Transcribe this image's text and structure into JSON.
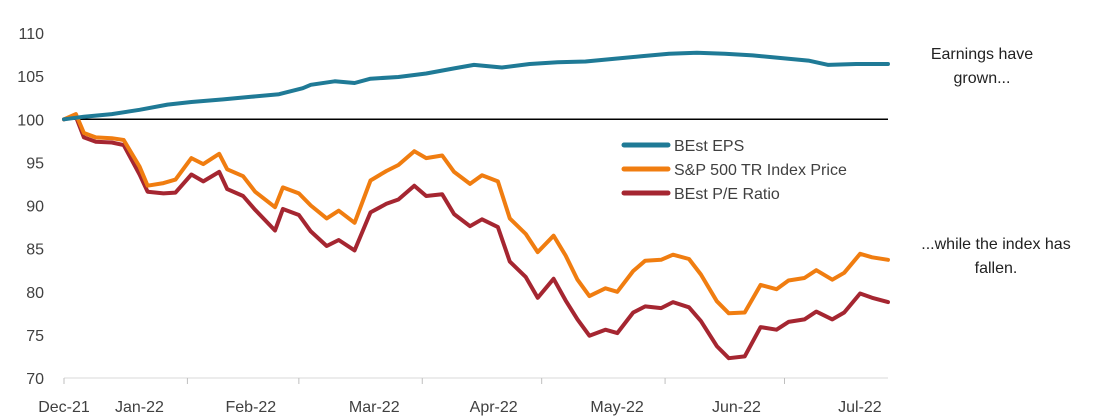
{
  "chart_data": {
    "type": "line",
    "title": "",
    "xlabel": "",
    "ylabel": "",
    "ylim": [
      70,
      110
    ],
    "yticks": [
      "70",
      "75",
      "80",
      "85",
      "90",
      "95",
      "100",
      "105",
      "110"
    ],
    "x_tick_labels": [
      "Dec-21",
      "Jan-22",
      "Feb-22",
      "Mar-22",
      "Apr-22",
      "May-22",
      "Jun-22",
      "Jul-22"
    ],
    "x_tick_dates": [
      "2021-12-31",
      "2022-01-31",
      "2022-02-28",
      "2022-03-31",
      "2022-04-30",
      "2022-05-31",
      "2022-06-30",
      "2022-07-31"
    ],
    "x_range": [
      "2021-12-31",
      "2022-07-26"
    ],
    "reference_line": 100,
    "legend_position": "center-right",
    "annotations": [
      "Earnings have grown...",
      "...while the index has fallen."
    ],
    "series": [
      {
        "name": "BEst EPS",
        "color": "#1f7a96",
        "points": [
          [
            "2021-12-31",
            100.0
          ],
          [
            "2022-01-05",
            100.3
          ],
          [
            "2022-01-12",
            100.6
          ],
          [
            "2022-01-19",
            101.1
          ],
          [
            "2022-01-26",
            101.7
          ],
          [
            "2022-02-01",
            102.0
          ],
          [
            "2022-02-09",
            102.3
          ],
          [
            "2022-02-16",
            102.6
          ],
          [
            "2022-02-23",
            102.9
          ],
          [
            "2022-03-01",
            103.6
          ],
          [
            "2022-03-03",
            104.0
          ],
          [
            "2022-03-09",
            104.4
          ],
          [
            "2022-03-14",
            104.2
          ],
          [
            "2022-03-18",
            104.7
          ],
          [
            "2022-03-25",
            104.9
          ],
          [
            "2022-04-01",
            105.3
          ],
          [
            "2022-04-08",
            105.9
          ],
          [
            "2022-04-13",
            106.3
          ],
          [
            "2022-04-20",
            106.0
          ],
          [
            "2022-04-27",
            106.4
          ],
          [
            "2022-05-04",
            106.6
          ],
          [
            "2022-05-11",
            106.7
          ],
          [
            "2022-05-18",
            107.0
          ],
          [
            "2022-05-25",
            107.3
          ],
          [
            "2022-06-01",
            107.6
          ],
          [
            "2022-06-08",
            107.7
          ],
          [
            "2022-06-15",
            107.6
          ],
          [
            "2022-06-22",
            107.4
          ],
          [
            "2022-06-29",
            107.1
          ],
          [
            "2022-07-06",
            106.8
          ],
          [
            "2022-07-11",
            106.3
          ],
          [
            "2022-07-18",
            106.4
          ],
          [
            "2022-07-26",
            106.4
          ]
        ]
      },
      {
        "name": "S&P 500 TR Index Price",
        "color": "#f07d10",
        "points": [
          [
            "2021-12-31",
            100.0
          ],
          [
            "2022-01-03",
            100.6
          ],
          [
            "2022-01-05",
            98.4
          ],
          [
            "2022-01-08",
            97.9
          ],
          [
            "2022-01-12",
            97.8
          ],
          [
            "2022-01-15",
            97.6
          ],
          [
            "2022-01-19",
            94.5
          ],
          [
            "2022-01-21",
            92.3
          ],
          [
            "2022-01-25",
            92.6
          ],
          [
            "2022-01-28",
            93.0
          ],
          [
            "2022-02-01",
            95.5
          ],
          [
            "2022-02-04",
            94.8
          ],
          [
            "2022-02-08",
            96.0
          ],
          [
            "2022-02-10",
            94.2
          ],
          [
            "2022-02-14",
            93.4
          ],
          [
            "2022-02-17",
            91.6
          ],
          [
            "2022-02-22",
            89.8
          ],
          [
            "2022-02-24",
            92.1
          ],
          [
            "2022-02-28",
            91.4
          ],
          [
            "2022-03-03",
            90.0
          ],
          [
            "2022-03-07",
            88.5
          ],
          [
            "2022-03-10",
            89.4
          ],
          [
            "2022-03-14",
            88.0
          ],
          [
            "2022-03-18",
            92.9
          ],
          [
            "2022-03-22",
            94.0
          ],
          [
            "2022-03-25",
            94.7
          ],
          [
            "2022-03-29",
            96.3
          ],
          [
            "2022-04-01",
            95.5
          ],
          [
            "2022-04-05",
            95.8
          ],
          [
            "2022-04-08",
            93.9
          ],
          [
            "2022-04-12",
            92.5
          ],
          [
            "2022-04-15",
            93.5
          ],
          [
            "2022-04-19",
            92.8
          ],
          [
            "2022-04-22",
            88.5
          ],
          [
            "2022-04-26",
            86.7
          ],
          [
            "2022-04-29",
            84.6
          ],
          [
            "2022-05-03",
            86.5
          ],
          [
            "2022-05-06",
            84.2
          ],
          [
            "2022-05-09",
            81.4
          ],
          [
            "2022-05-12",
            79.5
          ],
          [
            "2022-05-16",
            80.4
          ],
          [
            "2022-05-19",
            80.0
          ],
          [
            "2022-05-23",
            82.4
          ],
          [
            "2022-05-26",
            83.6
          ],
          [
            "2022-05-30",
            83.7
          ],
          [
            "2022-06-02",
            84.3
          ],
          [
            "2022-06-06",
            83.8
          ],
          [
            "2022-06-09",
            82.0
          ],
          [
            "2022-06-13",
            78.9
          ],
          [
            "2022-06-16",
            77.5
          ],
          [
            "2022-06-20",
            77.6
          ],
          [
            "2022-06-24",
            80.8
          ],
          [
            "2022-06-28",
            80.3
          ],
          [
            "2022-07-01",
            81.3
          ],
          [
            "2022-07-05",
            81.6
          ],
          [
            "2022-07-08",
            82.5
          ],
          [
            "2022-07-12",
            81.4
          ],
          [
            "2022-07-15",
            82.2
          ],
          [
            "2022-07-19",
            84.4
          ],
          [
            "2022-07-22",
            84.0
          ],
          [
            "2022-07-26",
            83.7
          ]
        ]
      },
      {
        "name": "BEst P/E Ratio",
        "color": "#a52631",
        "points": [
          [
            "2021-12-31",
            100.0
          ],
          [
            "2022-01-03",
            100.3
          ],
          [
            "2022-01-05",
            97.9
          ],
          [
            "2022-01-08",
            97.4
          ],
          [
            "2022-01-12",
            97.3
          ],
          [
            "2022-01-15",
            97.0
          ],
          [
            "2022-01-19",
            93.6
          ],
          [
            "2022-01-21",
            91.6
          ],
          [
            "2022-01-25",
            91.4
          ],
          [
            "2022-01-28",
            91.5
          ],
          [
            "2022-02-01",
            93.6
          ],
          [
            "2022-02-04",
            92.8
          ],
          [
            "2022-02-08",
            93.9
          ],
          [
            "2022-02-10",
            91.9
          ],
          [
            "2022-02-14",
            91.1
          ],
          [
            "2022-02-17",
            89.5
          ],
          [
            "2022-02-22",
            87.1
          ],
          [
            "2022-02-24",
            89.6
          ],
          [
            "2022-02-28",
            88.9
          ],
          [
            "2022-03-03",
            87.0
          ],
          [
            "2022-03-07",
            85.3
          ],
          [
            "2022-03-10",
            86.0
          ],
          [
            "2022-03-14",
            84.8
          ],
          [
            "2022-03-18",
            89.2
          ],
          [
            "2022-03-22",
            90.2
          ],
          [
            "2022-03-25",
            90.7
          ],
          [
            "2022-03-29",
            92.3
          ],
          [
            "2022-04-01",
            91.1
          ],
          [
            "2022-04-05",
            91.3
          ],
          [
            "2022-04-08",
            89.0
          ],
          [
            "2022-04-12",
            87.6
          ],
          [
            "2022-04-15",
            88.4
          ],
          [
            "2022-04-19",
            87.5
          ],
          [
            "2022-04-22",
            83.5
          ],
          [
            "2022-04-26",
            81.7
          ],
          [
            "2022-04-29",
            79.3
          ],
          [
            "2022-05-03",
            81.5
          ],
          [
            "2022-05-06",
            79.0
          ],
          [
            "2022-05-09",
            76.8
          ],
          [
            "2022-05-12",
            74.9
          ],
          [
            "2022-05-16",
            75.6
          ],
          [
            "2022-05-19",
            75.2
          ],
          [
            "2022-05-23",
            77.6
          ],
          [
            "2022-05-26",
            78.3
          ],
          [
            "2022-05-30",
            78.1
          ],
          [
            "2022-06-02",
            78.8
          ],
          [
            "2022-06-06",
            78.2
          ],
          [
            "2022-06-09",
            76.6
          ],
          [
            "2022-06-13",
            73.7
          ],
          [
            "2022-06-16",
            72.3
          ],
          [
            "2022-06-20",
            72.5
          ],
          [
            "2022-06-24",
            75.9
          ],
          [
            "2022-06-28",
            75.6
          ],
          [
            "2022-07-01",
            76.5
          ],
          [
            "2022-07-05",
            76.8
          ],
          [
            "2022-07-08",
            77.7
          ],
          [
            "2022-07-12",
            76.8
          ],
          [
            "2022-07-15",
            77.6
          ],
          [
            "2022-07-19",
            79.8
          ],
          [
            "2022-07-22",
            79.3
          ],
          [
            "2022-07-26",
            78.8
          ]
        ]
      }
    ]
  }
}
